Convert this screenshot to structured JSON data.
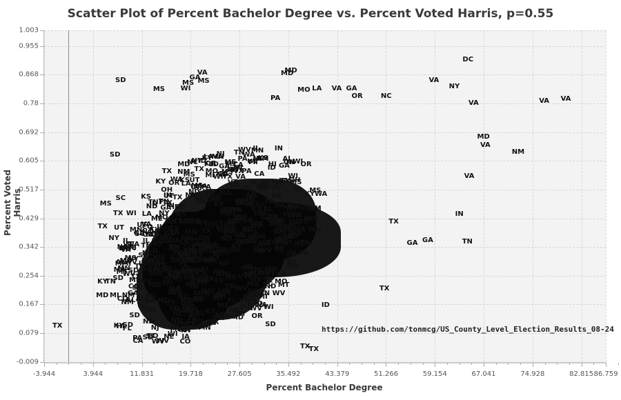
{
  "chart_data": {
    "type": "scatter",
    "title": "Scatter Plot of Percent Bachelor Degree vs. Percent Voted Harris, p=0.55",
    "xlabel": "Percent Bachelor Degree",
    "ylabel": "Percent Voted Harris",
    "xlim": [
      -3.944,
      86.759
    ],
    "ylim": [
      -0.009,
      1.003
    ],
    "x_ticks": [
      "-3.944",
      "3.944",
      "11.831",
      "19.718",
      "27.605",
      "35.492",
      "43.379",
      "51.266",
      "59.154",
      "67.041",
      "74.928",
      "82.815",
      "86.759"
    ],
    "y_ticks": [
      "1.003",
      "0.955",
      "0.868",
      "0.78",
      "0.692",
      "0.605",
      "0.517",
      "0.429",
      "0.342",
      "0.254",
      "0.167",
      "0.079",
      "-0.009"
    ],
    "grid": true,
    "legend": null,
    "marker": "state abbreviation text labels",
    "correlation": "p=0.55",
    "annotation": "https://github.com/tonmcg/US_County_Level_Election_Results_08-24",
    "labeled_points": [
      {
        "label": "DC",
        "x": 64.5,
        "y": 0.912
      },
      {
        "label": "VA",
        "x": 80.3,
        "y": 0.792
      },
      {
        "label": "VA",
        "x": 76.8,
        "y": 0.786
      },
      {
        "label": "NY",
        "x": 62.3,
        "y": 0.83
      },
      {
        "label": "VA",
        "x": 59.0,
        "y": 0.85
      },
      {
        "label": "VA",
        "x": 65.4,
        "y": 0.781
      },
      {
        "label": "NC",
        "x": 51.3,
        "y": 0.802
      },
      {
        "label": "MD",
        "x": 35.9,
        "y": 0.878
      },
      {
        "label": "MD",
        "x": 35.3,
        "y": 0.87
      },
      {
        "label": "LA",
        "x": 40.1,
        "y": 0.825
      },
      {
        "label": "MO",
        "x": 38.0,
        "y": 0.82
      },
      {
        "label": "VA",
        "x": 43.3,
        "y": 0.825
      },
      {
        "label": "GA",
        "x": 45.7,
        "y": 0.824
      },
      {
        "label": "OR",
        "x": 46.6,
        "y": 0.8
      },
      {
        "label": "PA",
        "x": 33.4,
        "y": 0.795
      },
      {
        "label": "VA",
        "x": 21.6,
        "y": 0.872
      },
      {
        "label": "GA",
        "x": 20.4,
        "y": 0.858
      },
      {
        "label": "MS",
        "x": 21.8,
        "y": 0.847
      },
      {
        "label": "MS",
        "x": 19.3,
        "y": 0.842
      },
      {
        "label": "WI",
        "x": 18.9,
        "y": 0.825
      },
      {
        "label": "MS",
        "x": 14.6,
        "y": 0.822
      },
      {
        "label": "SD",
        "x": 8.4,
        "y": 0.85
      },
      {
        "label": "NM",
        "x": 72.6,
        "y": 0.631
      },
      {
        "label": "MD",
        "x": 67.0,
        "y": 0.677
      },
      {
        "label": "VA",
        "x": 67.3,
        "y": 0.652
      },
      {
        "label": "VA",
        "x": 64.7,
        "y": 0.557
      },
      {
        "label": "IN",
        "x": 63.1,
        "y": 0.442
      },
      {
        "label": "TN",
        "x": 64.4,
        "y": 0.358
      },
      {
        "label": "GA",
        "x": 58.0,
        "y": 0.362
      },
      {
        "label": "GA",
        "x": 55.5,
        "y": 0.352
      },
      {
        "label": "TX",
        "x": 52.5,
        "y": 0.419
      },
      {
        "label": "TX",
        "x": 51.0,
        "y": 0.214
      },
      {
        "label": "SD",
        "x": 7.5,
        "y": 0.622
      },
      {
        "label": "MS",
        "x": 6.0,
        "y": 0.473
      },
      {
        "label": "SC",
        "x": 8.4,
        "y": 0.49
      },
      {
        "label": "TX",
        "x": 8.0,
        "y": 0.443
      },
      {
        "label": "TX",
        "x": 5.5,
        "y": 0.403
      },
      {
        "label": "TX",
        "x": -1.8,
        "y": 0.1
      },
      {
        "label": "KY",
        "x": 8.1,
        "y": 0.1
      },
      {
        "label": "TX",
        "x": 38.2,
        "y": 0.037
      },
      {
        "label": "TX",
        "x": 39.6,
        "y": 0.029
      },
      {
        "label": "ID",
        "x": 41.5,
        "y": 0.163
      },
      {
        "label": "SD",
        "x": 32.6,
        "y": 0.104
      }
    ],
    "dense_cluster": {
      "x_range": [
        10,
        35
      ],
      "y_range": [
        0.08,
        0.55
      ],
      "center": [
        20,
        0.25
      ]
    }
  }
}
